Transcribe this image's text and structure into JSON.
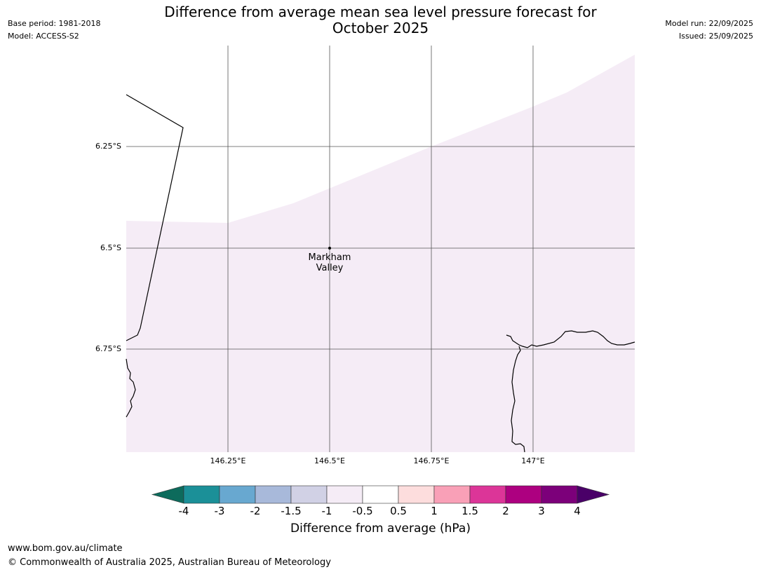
{
  "title": {
    "line1": "Difference from average mean sea level pressure forecast for",
    "line2": "October 2025"
  },
  "meta_left": {
    "base_period": "Base period: 1981-2018",
    "model": "Model: ACCESS-S2"
  },
  "meta_right": {
    "model_run": "Model run: 22/09/2025",
    "issued": "Issued: 25/09/2025"
  },
  "map": {
    "lat_labels": [
      "6.25°S",
      "6.5°S",
      "6.75°S"
    ],
    "lon_labels": [
      "146.25°E",
      "146.5°E",
      "146.75°E",
      "147°E"
    ],
    "place": {
      "name_line1": "Markham",
      "name_line2": "Valley"
    },
    "field_value_class": "-1 to -0.5"
  },
  "colorbar": {
    "label": "Difference from average (hPa)",
    "ticks": [
      "-4",
      "-3",
      "-2",
      "-1.5",
      "-1",
      "-0.5",
      "0.5",
      "1",
      "1.5",
      "2",
      "3",
      "4"
    ],
    "colors": {
      "lt_-4": "#0d6b5c",
      "-4_-3": "#1b9098",
      "-3_-2": "#68a8d0",
      "-2_-1.5": "#a8b9da",
      "-1.5_-1": "#d1d1e5",
      "-1_-0.5": "#f5ecf6",
      "-0.5_0.5": "#ffffff",
      "0.5_1": "#fddddd",
      "1_1.5": "#f9a0b7",
      "1.5_2": "#dc3598",
      "2_3": "#ad0080",
      "3_4": "#7c007a",
      "gt_4": "#4a0068"
    }
  },
  "footer": {
    "url": "www.bom.gov.au/climate",
    "copyright": "© Commonwealth of Australia 2025, Australian Bureau of Meteorology"
  }
}
